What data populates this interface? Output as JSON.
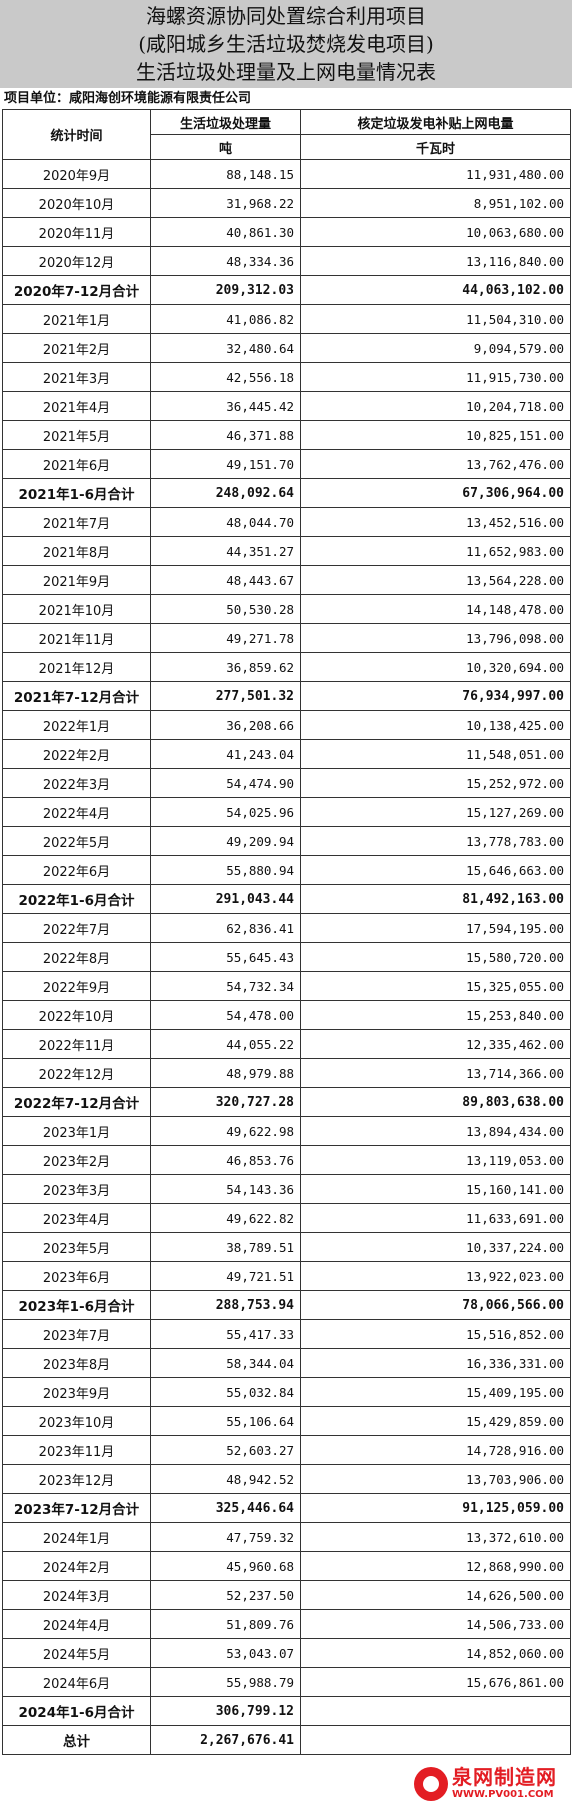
{
  "title": {
    "line1": "海螺资源协同处置综合利用项目",
    "line2": "(咸阳城乡生活垃圾焚烧发电项目)",
    "line3": "生活垃圾处理量及上网电量情况表"
  },
  "unit_label": "项目单位：咸阳海创环境能源有限责任公司",
  "headers": {
    "col1": "统计时间",
    "col2": "生活垃圾处理量",
    "col3": "核定垃圾发电补贴上网电量",
    "unit2": "吨",
    "unit3": "千瓦时"
  },
  "rows": [
    {
      "period": "2020年9月",
      "waste": "88,148.15",
      "power": "11,931,480.00",
      "subtotal": false
    },
    {
      "period": "2020年10月",
      "waste": "31,968.22",
      "power": "8,951,102.00",
      "subtotal": false
    },
    {
      "period": "2020年11月",
      "waste": "40,861.30",
      "power": "10,063,680.00",
      "subtotal": false
    },
    {
      "period": "2020年12月",
      "waste": "48,334.36",
      "power": "13,116,840.00",
      "subtotal": false
    },
    {
      "period": "2020年7-12月合计",
      "waste": "209,312.03",
      "power": "44,063,102.00",
      "subtotal": true
    },
    {
      "period": "2021年1月",
      "waste": "41,086.82",
      "power": "11,504,310.00",
      "subtotal": false
    },
    {
      "period": "2021年2月",
      "waste": "32,480.64",
      "power": "9,094,579.00",
      "subtotal": false
    },
    {
      "period": "2021年3月",
      "waste": "42,556.18",
      "power": "11,915,730.00",
      "subtotal": false
    },
    {
      "period": "2021年4月",
      "waste": "36,445.42",
      "power": "10,204,718.00",
      "subtotal": false
    },
    {
      "period": "2021年5月",
      "waste": "46,371.88",
      "power": "10,825,151.00",
      "subtotal": false
    },
    {
      "period": "2021年6月",
      "waste": "49,151.70",
      "power": "13,762,476.00",
      "subtotal": false
    },
    {
      "period": "2021年1-6月合计",
      "waste": "248,092.64",
      "power": "67,306,964.00",
      "subtotal": true
    },
    {
      "period": "2021年7月",
      "waste": "48,044.70",
      "power": "13,452,516.00",
      "subtotal": false
    },
    {
      "period": "2021年8月",
      "waste": "44,351.27",
      "power": "11,652,983.00",
      "subtotal": false
    },
    {
      "period": "2021年9月",
      "waste": "48,443.67",
      "power": "13,564,228.00",
      "subtotal": false
    },
    {
      "period": "2021年10月",
      "waste": "50,530.28",
      "power": "14,148,478.00",
      "subtotal": false
    },
    {
      "period": "2021年11月",
      "waste": "49,271.78",
      "power": "13,796,098.00",
      "subtotal": false
    },
    {
      "period": "2021年12月",
      "waste": "36,859.62",
      "power": "10,320,694.00",
      "subtotal": false
    },
    {
      "period": "2021年7-12月合计",
      "waste": "277,501.32",
      "power": "76,934,997.00",
      "subtotal": true
    },
    {
      "period": "2022年1月",
      "waste": "36,208.66",
      "power": "10,138,425.00",
      "subtotal": false
    },
    {
      "period": "2022年2月",
      "waste": "41,243.04",
      "power": "11,548,051.00",
      "subtotal": false
    },
    {
      "period": "2022年3月",
      "waste": "54,474.90",
      "power": "15,252,972.00",
      "subtotal": false
    },
    {
      "period": "2022年4月",
      "waste": "54,025.96",
      "power": "15,127,269.00",
      "subtotal": false
    },
    {
      "period": "2022年5月",
      "waste": "49,209.94",
      "power": "13,778,783.00",
      "subtotal": false
    },
    {
      "period": "2022年6月",
      "waste": "55,880.94",
      "power": "15,646,663.00",
      "subtotal": false
    },
    {
      "period": "2022年1-6月合计",
      "waste": "291,043.44",
      "power": "81,492,163.00",
      "subtotal": true
    },
    {
      "period": "2022年7月",
      "waste": "62,836.41",
      "power": "17,594,195.00",
      "subtotal": false
    },
    {
      "period": "2022年8月",
      "waste": "55,645.43",
      "power": "15,580,720.00",
      "subtotal": false
    },
    {
      "period": "2022年9月",
      "waste": "54,732.34",
      "power": "15,325,055.00",
      "subtotal": false
    },
    {
      "period": "2022年10月",
      "waste": "54,478.00",
      "power": "15,253,840.00",
      "subtotal": false
    },
    {
      "period": "2022年11月",
      "waste": "44,055.22",
      "power": "12,335,462.00",
      "subtotal": false
    },
    {
      "period": "2022年12月",
      "waste": "48,979.88",
      "power": "13,714,366.00",
      "subtotal": false
    },
    {
      "period": "2022年7-12月合计",
      "waste": "320,727.28",
      "power": "89,803,638.00",
      "subtotal": true
    },
    {
      "period": "2023年1月",
      "waste": "49,622.98",
      "power": "13,894,434.00",
      "subtotal": false
    },
    {
      "period": "2023年2月",
      "waste": "46,853.76",
      "power": "13,119,053.00",
      "subtotal": false
    },
    {
      "period": "2023年3月",
      "waste": "54,143.36",
      "power": "15,160,141.00",
      "subtotal": false
    },
    {
      "period": "2023年4月",
      "waste": "49,622.82",
      "power": "11,633,691.00",
      "subtotal": false
    },
    {
      "period": "2023年5月",
      "waste": "38,789.51",
      "power": "10,337,224.00",
      "subtotal": false
    },
    {
      "period": "2023年6月",
      "waste": "49,721.51",
      "power": "13,922,023.00",
      "subtotal": false
    },
    {
      "period": "2023年1-6月合计",
      "waste": "288,753.94",
      "power": "78,066,566.00",
      "subtotal": true
    },
    {
      "period": "2023年7月",
      "waste": "55,417.33",
      "power": "15,516,852.00",
      "subtotal": false
    },
    {
      "period": "2023年8月",
      "waste": "58,344.04",
      "power": "16,336,331.00",
      "subtotal": false
    },
    {
      "period": "2023年9月",
      "waste": "55,032.84",
      "power": "15,409,195.00",
      "subtotal": false
    },
    {
      "period": "2023年10月",
      "waste": "55,106.64",
      "power": "15,429,859.00",
      "subtotal": false
    },
    {
      "period": "2023年11月",
      "waste": "52,603.27",
      "power": "14,728,916.00",
      "subtotal": false
    },
    {
      "period": "2023年12月",
      "waste": "48,942.52",
      "power": "13,703,906.00",
      "subtotal": false
    },
    {
      "period": "2023年7-12月合计",
      "waste": "325,446.64",
      "power": "91,125,059.00",
      "subtotal": true
    },
    {
      "period": "2024年1月",
      "waste": "47,759.32",
      "power": "13,372,610.00",
      "subtotal": false
    },
    {
      "period": "2024年2月",
      "waste": "45,960.68",
      "power": "12,868,990.00",
      "subtotal": false
    },
    {
      "period": "2024年3月",
      "waste": "52,237.50",
      "power": "14,626,500.00",
      "subtotal": false
    },
    {
      "period": "2024年4月",
      "waste": "51,809.76",
      "power": "14,506,733.00",
      "subtotal": false
    },
    {
      "period": "2024年5月",
      "waste": "53,043.07",
      "power": "14,852,060.00",
      "subtotal": false
    },
    {
      "period": "2024年6月",
      "waste": "55,988.79",
      "power": "15,676,861.00",
      "subtotal": false
    },
    {
      "period": "2024年1-6月合计",
      "waste": "306,799.12",
      "power": "",
      "subtotal": true
    },
    {
      "period": "总计",
      "waste": "2,267,676.41",
      "power": "",
      "subtotal": true
    }
  ],
  "watermark": {
    "text": "泉网制造网",
    "url": "WWW.PV001.COM",
    "color": "#e31d23"
  }
}
